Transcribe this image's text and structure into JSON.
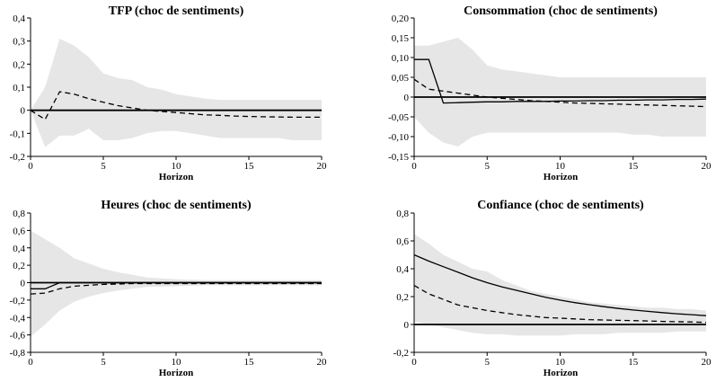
{
  "chart_data": [
    {
      "type": "line",
      "title": "TFP (choc de sentiments)",
      "xlabel": "Horizon",
      "ylabel": "",
      "xlim": [
        0,
        20
      ],
      "ylim": [
        -0.2,
        0.4
      ],
      "x_ticks": [
        "0",
        "5",
        "10",
        "15",
        "20"
      ],
      "y_ticks": [
        "0,4",
        "0,3",
        "0,2",
        "0,1",
        "0",
        "-0,1",
        "-0,2"
      ],
      "x": [
        0,
        1,
        2,
        3,
        4,
        5,
        6,
        7,
        8,
        9,
        10,
        11,
        12,
        13,
        14,
        15,
        16,
        17,
        18,
        19,
        20
      ],
      "band_upper": [
        0.0,
        0.1,
        0.31,
        0.28,
        0.23,
        0.16,
        0.14,
        0.13,
        0.1,
        0.09,
        0.07,
        0.06,
        0.05,
        0.045,
        0.045,
        0.045,
        0.045,
        0.045,
        0.045,
        0.045,
        0.045
      ],
      "band_lower": [
        0.0,
        -0.16,
        -0.11,
        -0.11,
        -0.08,
        -0.13,
        -0.13,
        -0.12,
        -0.1,
        -0.09,
        -0.09,
        -0.1,
        -0.11,
        -0.12,
        -0.12,
        -0.12,
        -0.12,
        -0.12,
        -0.13,
        -0.13,
        -0.13
      ],
      "solid": [
        0,
        0,
        0,
        0,
        0,
        0,
        0,
        0,
        0,
        0,
        0,
        0,
        0,
        0,
        0,
        0,
        0,
        0,
        0,
        0,
        0
      ],
      "dashed": [
        0.0,
        -0.04,
        0.08,
        0.07,
        0.05,
        0.035,
        0.02,
        0.01,
        0.0,
        -0.005,
        -0.01,
        -0.015,
        -0.02,
        -0.022,
        -0.025,
        -0.027,
        -0.028,
        -0.029,
        -0.03,
        -0.03,
        -0.03
      ]
    },
    {
      "type": "line",
      "title": "Consommation (choc de sentiments)",
      "xlabel": "Horizon",
      "ylabel": "",
      "xlim": [
        0,
        20
      ],
      "ylim": [
        -0.15,
        0.2
      ],
      "x_ticks": [
        "0",
        "5",
        "10",
        "15",
        "20"
      ],
      "y_ticks": [
        "0,20",
        "0,15",
        "0,10",
        "0,05",
        "0",
        "-0,05",
        "-0,10",
        "-0,15"
      ],
      "x": [
        0,
        1,
        2,
        3,
        4,
        5,
        6,
        7,
        8,
        9,
        10,
        11,
        12,
        13,
        14,
        15,
        16,
        17,
        18,
        19,
        20
      ],
      "band_upper": [
        0.13,
        0.13,
        0.14,
        0.15,
        0.12,
        0.08,
        0.07,
        0.065,
        0.06,
        0.055,
        0.05,
        0.05,
        0.05,
        0.05,
        0.05,
        0.05,
        0.05,
        0.05,
        0.05,
        0.05,
        0.05
      ],
      "band_lower": [
        -0.05,
        -0.09,
        -0.115,
        -0.125,
        -0.1,
        -0.09,
        -0.09,
        -0.09,
        -0.09,
        -0.09,
        -0.09,
        -0.09,
        -0.09,
        -0.09,
        -0.09,
        -0.095,
        -0.095,
        -0.1,
        -0.1,
        -0.1,
        -0.1
      ],
      "solid": [
        0.095,
        0.095,
        -0.015,
        -0.014,
        -0.013,
        -0.012,
        -0.012,
        -0.011,
        -0.011,
        -0.011,
        -0.01,
        -0.01,
        -0.009,
        -0.009,
        -0.008,
        -0.008,
        -0.007,
        -0.007,
        -0.006,
        -0.006,
        -0.005
      ],
      "dashed": [
        0.045,
        0.02,
        0.015,
        0.01,
        0.005,
        0.0,
        -0.003,
        -0.006,
        -0.009,
        -0.011,
        -0.013,
        -0.015,
        -0.016,
        -0.017,
        -0.018,
        -0.019,
        -0.02,
        -0.021,
        -0.022,
        -0.023,
        -0.024
      ]
    },
    {
      "type": "line",
      "title": "Heures (choc de sentiments)",
      "xlabel": "Horizon",
      "ylabel": "",
      "xlim": [
        0,
        20
      ],
      "ylim": [
        -0.8,
        0.8
      ],
      "x_ticks": [
        "0",
        "5",
        "10",
        "15",
        "20"
      ],
      "y_ticks": [
        "0,8",
        "0,6",
        "0,4",
        "0,2",
        "0",
        "-0,2",
        "-0,4",
        "-0,6",
        "-0,8"
      ],
      "x": [
        0,
        1,
        2,
        3,
        4,
        5,
        6,
        7,
        8,
        9,
        10,
        11,
        12,
        13,
        14,
        15,
        16,
        17,
        18,
        19,
        20
      ],
      "band_upper": [
        0.6,
        0.5,
        0.4,
        0.28,
        0.22,
        0.16,
        0.12,
        0.09,
        0.06,
        0.05,
        0.04,
        0.035,
        0.03,
        0.03,
        0.03,
        0.03,
        0.03,
        0.03,
        0.03,
        0.03,
        0.03
      ],
      "band_lower": [
        -0.62,
        -0.48,
        -0.32,
        -0.22,
        -0.16,
        -0.12,
        -0.09,
        -0.07,
        -0.05,
        -0.045,
        -0.04,
        -0.035,
        -0.03,
        -0.03,
        -0.03,
        -0.03,
        -0.03,
        -0.03,
        -0.03,
        -0.03,
        -0.03
      ],
      "solid": [
        -0.07,
        -0.07,
        0.0,
        0.0,
        0.0,
        0.0,
        0.0,
        0.0,
        0.0,
        0.0,
        0.0,
        0.0,
        0.0,
        0.0,
        0.0,
        0.0,
        0.0,
        0.0,
        0.0,
        0.0,
        0.0
      ],
      "dashed": [
        -0.13,
        -0.12,
        -0.07,
        -0.04,
        -0.03,
        -0.02,
        -0.015,
        -0.01,
        -0.01,
        -0.01,
        -0.01,
        -0.01,
        -0.01,
        -0.01,
        -0.01,
        -0.01,
        -0.01,
        -0.01,
        -0.01,
        -0.01,
        -0.01
      ]
    },
    {
      "type": "line",
      "title": "Confiance (choc de sentiments)",
      "xlabel": "Horizon",
      "ylabel": "",
      "xlim": [
        0,
        20
      ],
      "ylim": [
        -0.2,
        0.8
      ],
      "x_ticks": [
        "0",
        "5",
        "10",
        "15",
        "20"
      ],
      "y_ticks": [
        "0,8",
        "0,6",
        "0,4",
        "0,2",
        "0",
        "-0,2"
      ],
      "x": [
        0,
        1,
        2,
        3,
        4,
        5,
        6,
        7,
        8,
        9,
        10,
        11,
        12,
        13,
        14,
        15,
        16,
        17,
        18,
        19,
        20
      ],
      "band_upper": [
        0.65,
        0.58,
        0.5,
        0.45,
        0.4,
        0.38,
        0.32,
        0.28,
        0.24,
        0.22,
        0.2,
        0.18,
        0.16,
        0.15,
        0.14,
        0.13,
        0.12,
        0.12,
        0.11,
        0.11,
        0.1
      ],
      "band_lower": [
        0.02,
        0.0,
        -0.02,
        -0.04,
        -0.06,
        -0.07,
        -0.07,
        -0.08,
        -0.08,
        -0.08,
        -0.08,
        -0.07,
        -0.07,
        -0.07,
        -0.06,
        -0.06,
        -0.06,
        -0.06,
        -0.05,
        -0.05,
        -0.05
      ],
      "solid": [
        0.5,
        0.455,
        0.415,
        0.375,
        0.335,
        0.3,
        0.27,
        0.245,
        0.22,
        0.195,
        0.175,
        0.157,
        0.142,
        0.128,
        0.115,
        0.104,
        0.094,
        0.085,
        0.077,
        0.07,
        0.063
      ],
      "dashed": [
        0.28,
        0.22,
        0.18,
        0.14,
        0.12,
        0.1,
        0.085,
        0.07,
        0.06,
        0.05,
        0.045,
        0.04,
        0.035,
        0.032,
        0.03,
        0.028,
        0.025,
        0.022,
        0.02,
        0.018,
        0.015
      ]
    }
  ]
}
